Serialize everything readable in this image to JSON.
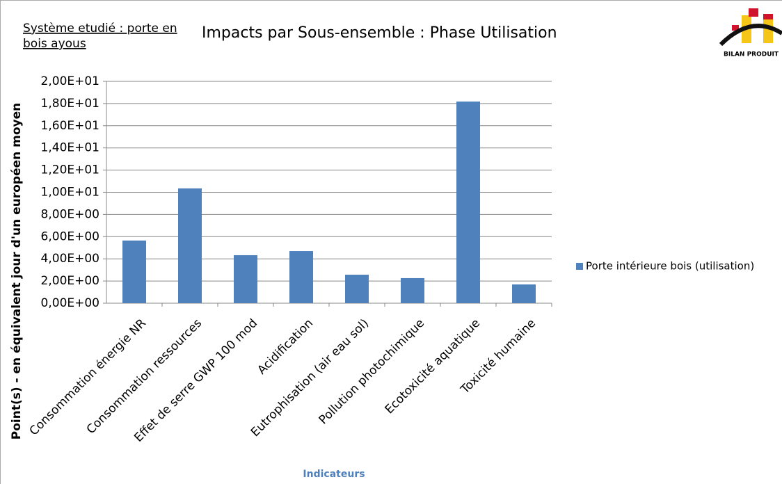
{
  "chart_data": {
    "type": "bar",
    "title": "Impacts par Sous-ensemble  : Phase Utilisation",
    "annotation": [
      "Système etudié : porte en",
      "bois ayous"
    ],
    "logo_text": "BILAN PRODUIT",
    "y_label": "Point(s)  - en équivalent jour d'un européen moyen",
    "x_label": "Indicateurs",
    "categories": [
      "Consommation énergie NR",
      "Consommation ressources",
      "Effet de serre GWP 100 mod",
      "Acidification",
      "Eutrophisation (air eau sol)",
      "Pollution photochimique",
      "Ecotoxicité aquatique",
      "Toxicité humaine"
    ],
    "series": [
      {
        "name": "Porte intérieure bois  (utilisation)",
        "color": "#4f81bd",
        "values": [
          5.65,
          10.35,
          4.33,
          4.7,
          2.57,
          2.26,
          18.18,
          1.69
        ]
      }
    ],
    "ylim": [
      0,
      20
    ],
    "yticks": [
      {
        "value": 0,
        "label": "0,00E+00"
      },
      {
        "value": 2,
        "label": "2,00E+00"
      },
      {
        "value": 4,
        "label": "4,00E+00"
      },
      {
        "value": 6,
        "label": "6,00E+00"
      },
      {
        "value": 8,
        "label": "8,00E+00"
      },
      {
        "value": 10,
        "label": "1,00E+01"
      },
      {
        "value": 12,
        "label": "1,20E+01"
      },
      {
        "value": 14,
        "label": "1,40E+01"
      },
      {
        "value": 16,
        "label": "1,60E+01"
      },
      {
        "value": 18,
        "label": "1,80E+01"
      },
      {
        "value": 20,
        "label": "2,00E+01"
      }
    ],
    "grid": true,
    "legend": "right"
  }
}
